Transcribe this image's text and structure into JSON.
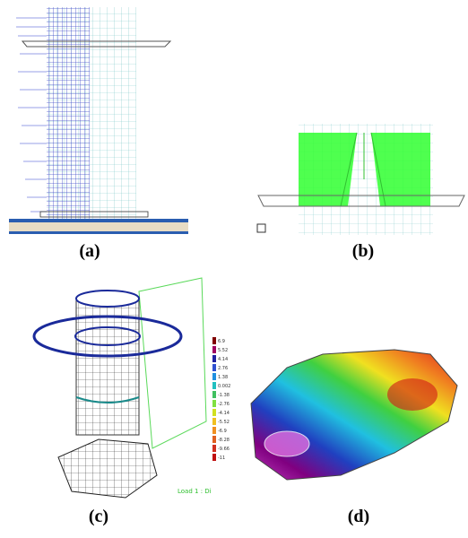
{
  "panels": [
    {
      "label": "(a)"
    },
    {
      "label": "(b)"
    },
    {
      "label": "(c)",
      "annotation": "Load 1 : Di"
    },
    {
      "label": "(d)",
      "legend": [
        "6.9",
        "5.52",
        "4.14",
        "2.76",
        "1.38",
        "0.002",
        "-1.38",
        "-2.76",
        "-4.14",
        "-5.52",
        "-6.9",
        "-8.28",
        "-9.66",
        "-11"
      ]
    }
  ]
}
